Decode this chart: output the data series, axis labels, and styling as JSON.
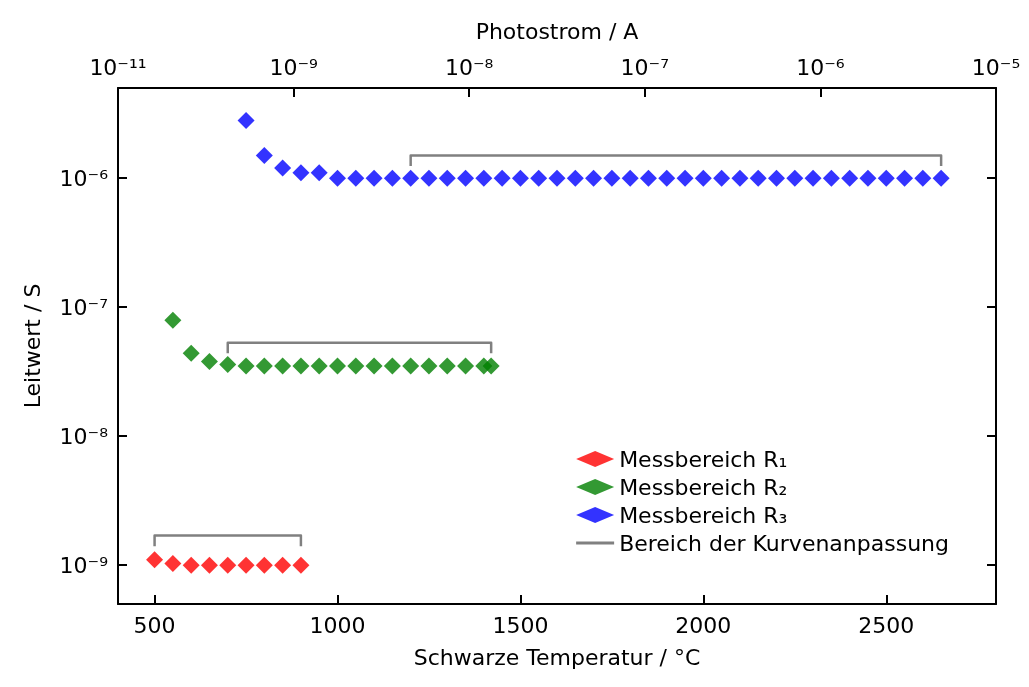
{
  "chart_data": {
    "type": "scatter",
    "xlabel": "Schwarze Temperatur / °C",
    "ylabel": "Leitwert / S",
    "x2label": "Photostrom / A",
    "xlim": [
      400,
      2800
    ],
    "xticks": [
      500,
      1000,
      1500,
      2000,
      2500
    ],
    "annotations": [
      "10⁻¹¹",
      "10⁻⁹",
      "10⁻⁸",
      "10⁻⁷",
      "10⁻⁶",
      "10⁻⁵"
    ],
    "ylim": [
      5e-10,
      5e-06
    ],
    "log": "y",
    "yticks": [
      {
        "value": 1e-09,
        "label": "10⁻⁹"
      },
      {
        "value": 1e-08,
        "label": "10⁻⁸"
      },
      {
        "value": 1e-07,
        "label": "10⁻⁷"
      },
      {
        "value": 1e-06,
        "label": "10⁻⁶"
      }
    ],
    "legend": "bottom right",
    "marker": "diamond",
    "series": [
      {
        "name": "Messbereich R₁",
        "color": "#ff0000",
        "x": [
          500,
          550,
          600,
          650,
          700,
          750,
          800,
          850,
          900
        ],
        "values": [
          1.1e-09,
          1.03e-09,
          1e-09,
          1e-09,
          1e-09,
          1e-09,
          1e-09,
          1e-09,
          1e-09
        ]
      },
      {
        "name": "Messbereich R₂",
        "color": "#008000",
        "x": [
          550,
          600,
          650,
          700,
          750,
          800,
          850,
          900,
          950,
          1000,
          1050,
          1100,
          1150,
          1200,
          1250,
          1300,
          1350,
          1400,
          1420
        ],
        "values": [
          7.9e-08,
          4.4e-08,
          3.8e-08,
          3.6e-08,
          3.5e-08,
          3.5e-08,
          3.5e-08,
          3.5e-08,
          3.5e-08,
          3.5e-08,
          3.5e-08,
          3.5e-08,
          3.5e-08,
          3.5e-08,
          3.5e-08,
          3.5e-08,
          3.5e-08,
          3.5e-08,
          3.5e-08
        ]
      },
      {
        "name": "Messbereich R₃",
        "color": "#0000ff",
        "x": [
          750,
          800,
          850,
          900,
          950,
          1000,
          1050,
          1100,
          1150,
          1200,
          1250,
          1300,
          1350,
          1400,
          1450,
          1500,
          1550,
          1600,
          1650,
          1700,
          1750,
          1800,
          1850,
          1900,
          1950,
          2000,
          2050,
          2100,
          2150,
          2200,
          2250,
          2300,
          2350,
          2400,
          2450,
          2500,
          2550,
          2600,
          2650
        ],
        "values": [
          2.8e-06,
          1.5e-06,
          1.2e-06,
          1.1e-06,
          1.1e-06,
          1e-06,
          1e-06,
          1e-06,
          1e-06,
          1e-06,
          1e-06,
          1e-06,
          1e-06,
          1e-06,
          1e-06,
          1e-06,
          1e-06,
          1e-06,
          1e-06,
          1e-06,
          1e-06,
          1e-06,
          1e-06,
          1e-06,
          1e-06,
          1e-06,
          1e-06,
          1e-06,
          1e-06,
          1e-06,
          1e-06,
          1e-06,
          1e-06,
          1e-06,
          1e-06,
          1e-06,
          1e-06,
          1e-06,
          1e-06
        ]
      },
      {
        "name": "Bereich der Kurvenanpassung",
        "type": "line",
        "marker": "none",
        "color": "#808080",
        "x": [
          500,
          500,
          900,
          900
        ],
        "values": [
          1.4e-09,
          1.7e-09,
          1.7e-09,
          1.4e-09
        ]
      },
      {
        "type": "line",
        "marker": "none",
        "color": "#808080",
        "x": [
          700,
          700,
          1420,
          1420
        ],
        "values": [
          4.4e-08,
          5.3e-08,
          5.3e-08,
          4.4e-08
        ]
      },
      {
        "type": "line",
        "marker": "none",
        "color": "#808080",
        "x": [
          1200,
          1200,
          2650,
          2650
        ],
        "values": [
          1.24e-06,
          1.5e-06,
          1.5e-06,
          1.24e-06
        ]
      }
    ]
  }
}
